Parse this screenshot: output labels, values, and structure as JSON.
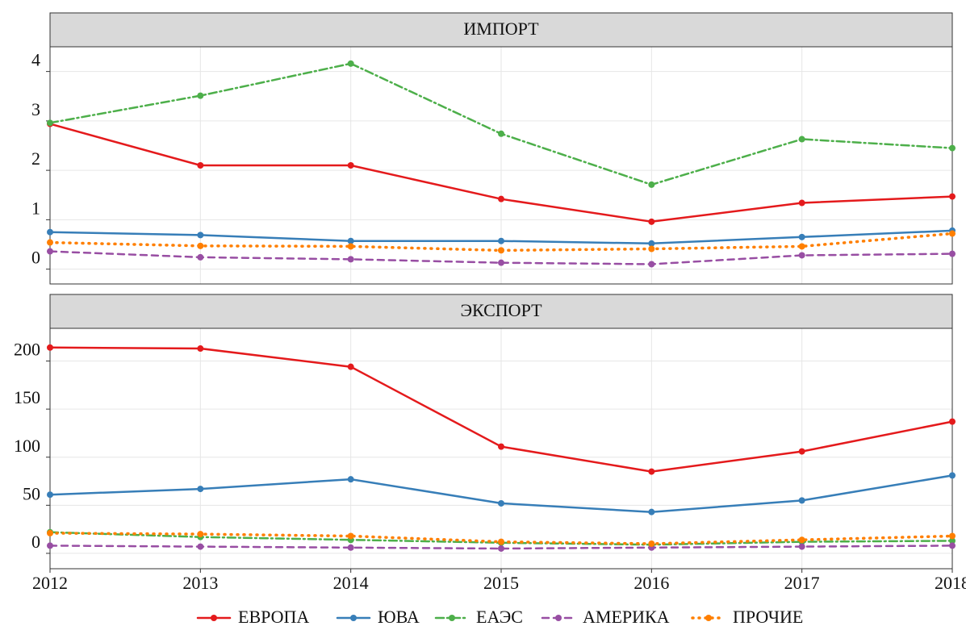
{
  "chart_data": [
    {
      "type": "line",
      "title": "ИМПОРТ",
      "x": [
        2012,
        2013,
        2014,
        2015,
        2016,
        2017,
        2018
      ],
      "xlim": [
        2012,
        2018
      ],
      "ylim": [
        -0.3,
        4.5
      ],
      "yticks": [
        0,
        1,
        2,
        3,
        4
      ],
      "grid": true,
      "series": [
        {
          "name": "ЕВРОПА",
          "color": "#e41a1c",
          "linestyle": "solid",
          "values": [
            2.94,
            2.1,
            2.1,
            1.42,
            0.96,
            1.34,
            1.47
          ]
        },
        {
          "name": "ЮВА",
          "color": "#377eb8",
          "linestyle": "solid",
          "values": [
            0.75,
            0.69,
            0.57,
            0.57,
            0.52,
            0.65,
            0.78
          ]
        },
        {
          "name": "ЕАЭС",
          "color": "#4daf4a",
          "linestyle": "dashdot",
          "values": [
            2.96,
            3.51,
            4.16,
            2.74,
            1.71,
            2.63,
            2.45
          ]
        },
        {
          "name": "АМЕРИКА",
          "color": "#984ea3",
          "linestyle": "dashed",
          "values": [
            0.36,
            0.24,
            0.2,
            0.13,
            0.1,
            0.28,
            0.31
          ]
        },
        {
          "name": "ПРОЧИЕ",
          "color": "#ff7f00",
          "linestyle": "dotted",
          "values": [
            0.54,
            0.47,
            0.46,
            0.38,
            0.41,
            0.46,
            0.72
          ]
        }
      ]
    },
    {
      "type": "line",
      "title": "ЭКСПОРТ",
      "x": [
        2012,
        2013,
        2014,
        2015,
        2016,
        2017,
        2018
      ],
      "xlim": [
        2012,
        2018
      ],
      "xticks": [
        2012,
        2013,
        2014,
        2015,
        2016,
        2017,
        2018
      ],
      "ylim": [
        -16,
        234
      ],
      "yticks": [
        0,
        50,
        100,
        150,
        200
      ],
      "grid": true,
      "series": [
        {
          "name": "ЕВРОПА",
          "color": "#e41a1c",
          "linestyle": "solid",
          "values": [
            214,
            213,
            194,
            111,
            85,
            106,
            137
          ]
        },
        {
          "name": "ЮВА",
          "color": "#377eb8",
          "linestyle": "solid",
          "values": [
            61,
            67,
            77,
            52,
            43,
            55,
            81
          ]
        },
        {
          "name": "ЕАЭС",
          "color": "#4daf4a",
          "linestyle": "dashdot",
          "values": [
            22,
            17,
            14,
            11,
            9,
            12,
            13
          ]
        },
        {
          "name": "АМЕРИКА",
          "color": "#984ea3",
          "linestyle": "dashed",
          "values": [
            8,
            7,
            6,
            5,
            6,
            7,
            8
          ]
        },
        {
          "name": "ПРОЧИЕ",
          "color": "#ff7f00",
          "linestyle": "dotted",
          "values": [
            21,
            20,
            18,
            12,
            10,
            14,
            18
          ]
        }
      ]
    }
  ]
}
